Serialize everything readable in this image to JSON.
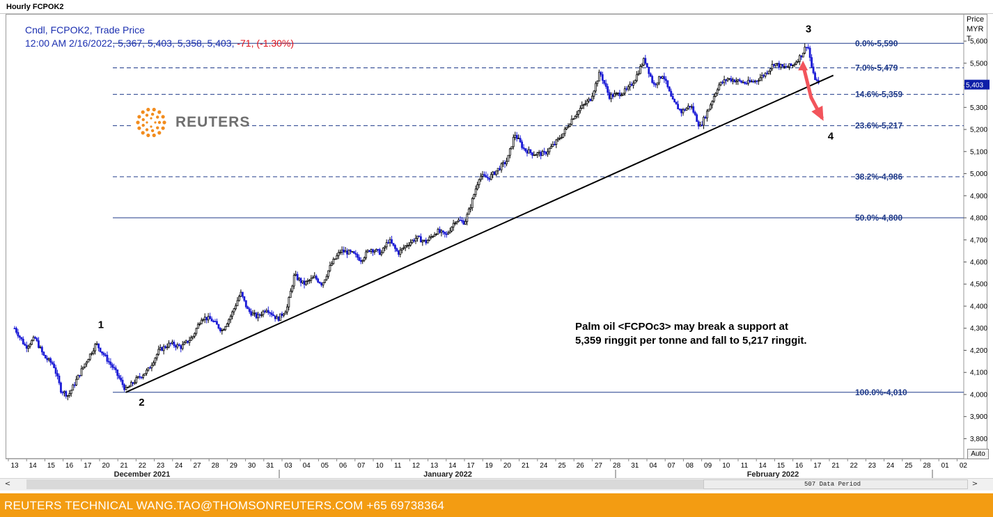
{
  "window": {
    "title": "Hourly FCPOK2"
  },
  "header": {
    "line1": "Cndl, FCPOK2, Trade Price",
    "line2_main": "12:00 AM 2/16/2022, 5,367, 5,403, 5,358, 5,403, ",
    "line2_change": "-71, (-1.30%)"
  },
  "price_axis": {
    "title": "Price\nMYR\nT",
    "current_price_tag": "5,403",
    "auto_label": "Auto"
  },
  "logo": {
    "text": "REUTERS"
  },
  "annotation": {
    "line1": "Palm oil <FCPOc3> may break a support at",
    "line2": "5,359 ringgit per tonne and fall to 5,217 ringgit."
  },
  "scrollbar": {
    "label": "507 Data Period",
    "left_arrow": "<",
    "right_arrow": ">"
  },
  "footer": {
    "text": "REUTERS TECHNICAL  WANG.TAO@THOMSONREUTERS.COM  +65 69738364"
  },
  "colors": {
    "candle_up": "#000000",
    "candle_down": "#1a1ad6",
    "fib_line": "#1f3a8a",
    "arrow": "#f2545b",
    "footer_bg": "#f39c12"
  },
  "chart_data": {
    "type": "candlestick",
    "ylim": [
      3710,
      5720
    ],
    "y_ticks": [
      "3,800",
      "3,900",
      "4,000",
      "4,100",
      "4,200",
      "4,300",
      "4,400",
      "4,500",
      "4,600",
      "4,700",
      "4,800",
      "4,900",
      "5,000",
      "5,100",
      "5,200",
      "5,300",
      "5,400",
      "5,500",
      "5,600"
    ],
    "y_tick_values": [
      3800,
      3900,
      4000,
      4100,
      4200,
      4300,
      4400,
      4500,
      4600,
      4700,
      4800,
      4900,
      5000,
      5100,
      5200,
      5300,
      5400,
      5500,
      5600
    ],
    "x_day_labels": [
      "13",
      "14",
      "15",
      "16",
      "17",
      "20",
      "21",
      "22",
      "23",
      "24",
      "27",
      "28",
      "29",
      "30",
      "31",
      "03",
      "04",
      "05",
      "06",
      "07",
      "10",
      "11",
      "12",
      "13",
      "14",
      "17",
      "19",
      "20",
      "21",
      "24",
      "25",
      "26",
      "27",
      "28",
      "31",
      "04",
      "07",
      "08",
      "09",
      "10",
      "11",
      "14",
      "15",
      "16",
      "17",
      "21",
      "22",
      "23",
      "24",
      "25",
      "28",
      "01",
      "02"
    ],
    "x_months": [
      "December 2021",
      "January 2022",
      "February 2022"
    ],
    "fib_levels": [
      {
        "pct": "0.0%",
        "price": "5,590",
        "value": 5590,
        "style": "solid"
      },
      {
        "pct": "7.0%",
        "price": "5,479",
        "value": 5479,
        "style": "dashed"
      },
      {
        "pct": "14.6%",
        "price": "5,359",
        "value": 5359,
        "style": "dashed"
      },
      {
        "pct": "23.6%",
        "price": "5,217",
        "value": 5217,
        "style": "dashed"
      },
      {
        "pct": "38.2%",
        "price": "4,986",
        "value": 4986,
        "style": "dashed"
      },
      {
        "pct": "50.0%",
        "price": "4,800",
        "value": 4800,
        "style": "solid"
      },
      {
        "pct": "100.0%",
        "price": "4,010",
        "value": 4010,
        "style": "solid"
      }
    ],
    "wave_labels": [
      {
        "label": "1",
        "day": 4.5,
        "price": 4300
      },
      {
        "label": "2",
        "day": 6.7,
        "price": 3950
      },
      {
        "label": "3",
        "day": 42.7,
        "price": 5640
      },
      {
        "label": "4",
        "day": 43.9,
        "price": 5155
      }
    ],
    "trendline": {
      "from": {
        "day": 6.0,
        "price": 4010
      },
      "to": {
        "day": 44.2,
        "price": 5445
      }
    },
    "forecast_arrow": {
      "from": {
        "day": 42.6,
        "price": 5480
      },
      "via": {
        "day": 43.0,
        "price": 5345
      },
      "to": {
        "day": 43.6,
        "price": 5250
      }
    },
    "price_path": [
      [
        0,
        4300
      ],
      [
        0.6,
        4215
      ],
      [
        1.1,
        4255
      ],
      [
        1.6,
        4170
      ],
      [
        2.1,
        4135
      ],
      [
        2.5,
        4020
      ],
      [
        2.9,
        3995
      ],
      [
        3.3,
        4060
      ],
      [
        3.8,
        4140
      ],
      [
        4.4,
        4230
      ],
      [
        4.9,
        4170
      ],
      [
        5.4,
        4110
      ],
      [
        6.0,
        4020
      ],
      [
        6.6,
        4070
      ],
      [
        7.2,
        4110
      ],
      [
        7.8,
        4200
      ],
      [
        8.4,
        4230
      ],
      [
        9.0,
        4215
      ],
      [
        9.6,
        4260
      ],
      [
        10.1,
        4350
      ],
      [
        10.6,
        4340
      ],
      [
        11.2,
        4290
      ],
      [
        11.7,
        4360
      ],
      [
        12.2,
        4460
      ],
      [
        12.6,
        4380
      ],
      [
        13.1,
        4350
      ],
      [
        13.6,
        4390
      ],
      [
        14.2,
        4340
      ],
      [
        14.7,
        4390
      ],
      [
        15.1,
        4540
      ],
      [
        15.6,
        4500
      ],
      [
        16.2,
        4530
      ],
      [
        16.6,
        4500
      ],
      [
        17.1,
        4590
      ],
      [
        17.6,
        4650
      ],
      [
        18.2,
        4640
      ],
      [
        18.7,
        4610
      ],
      [
        19.2,
        4660
      ],
      [
        19.8,
        4640
      ],
      [
        20.2,
        4700
      ],
      [
        20.7,
        4640
      ],
      [
        21.2,
        4680
      ],
      [
        21.7,
        4710
      ],
      [
        22.2,
        4690
      ],
      [
        22.8,
        4740
      ],
      [
        23.3,
        4720
      ],
      [
        23.8,
        4790
      ],
      [
        24.3,
        4780
      ],
      [
        24.6,
        4850
      ],
      [
        25.1,
        4990
      ],
      [
        25.6,
        4980
      ],
      [
        26.1,
        5020
      ],
      [
        26.6,
        5060
      ],
      [
        27.0,
        5180
      ],
      [
        27.5,
        5110
      ],
      [
        28.0,
        5090
      ],
      [
        28.6,
        5090
      ],
      [
        29.1,
        5130
      ],
      [
        29.6,
        5180
      ],
      [
        30.1,
        5250
      ],
      [
        30.6,
        5300
      ],
      [
        31.1,
        5340
      ],
      [
        31.6,
        5460
      ],
      [
        32.1,
        5350
      ],
      [
        32.6,
        5360
      ],
      [
        33.1,
        5380
      ],
      [
        33.5,
        5430
      ],
      [
        34.0,
        5520
      ],
      [
        34.5,
        5400
      ],
      [
        35.0,
        5450
      ],
      [
        35.5,
        5330
      ],
      [
        36.0,
        5280
      ],
      [
        36.5,
        5310
      ],
      [
        37.0,
        5210
      ],
      [
        37.5,
        5300
      ],
      [
        38.0,
        5400
      ],
      [
        38.5,
        5430
      ],
      [
        39.0,
        5420
      ],
      [
        39.5,
        5410
      ],
      [
        40.0,
        5420
      ],
      [
        40.5,
        5450
      ],
      [
        41.0,
        5500
      ],
      [
        41.5,
        5480
      ],
      [
        42.0,
        5490
      ],
      [
        42.5,
        5540
      ],
      [
        42.8,
        5590
      ],
      [
        43.1,
        5450
      ],
      [
        43.4,
        5403
      ]
    ]
  }
}
